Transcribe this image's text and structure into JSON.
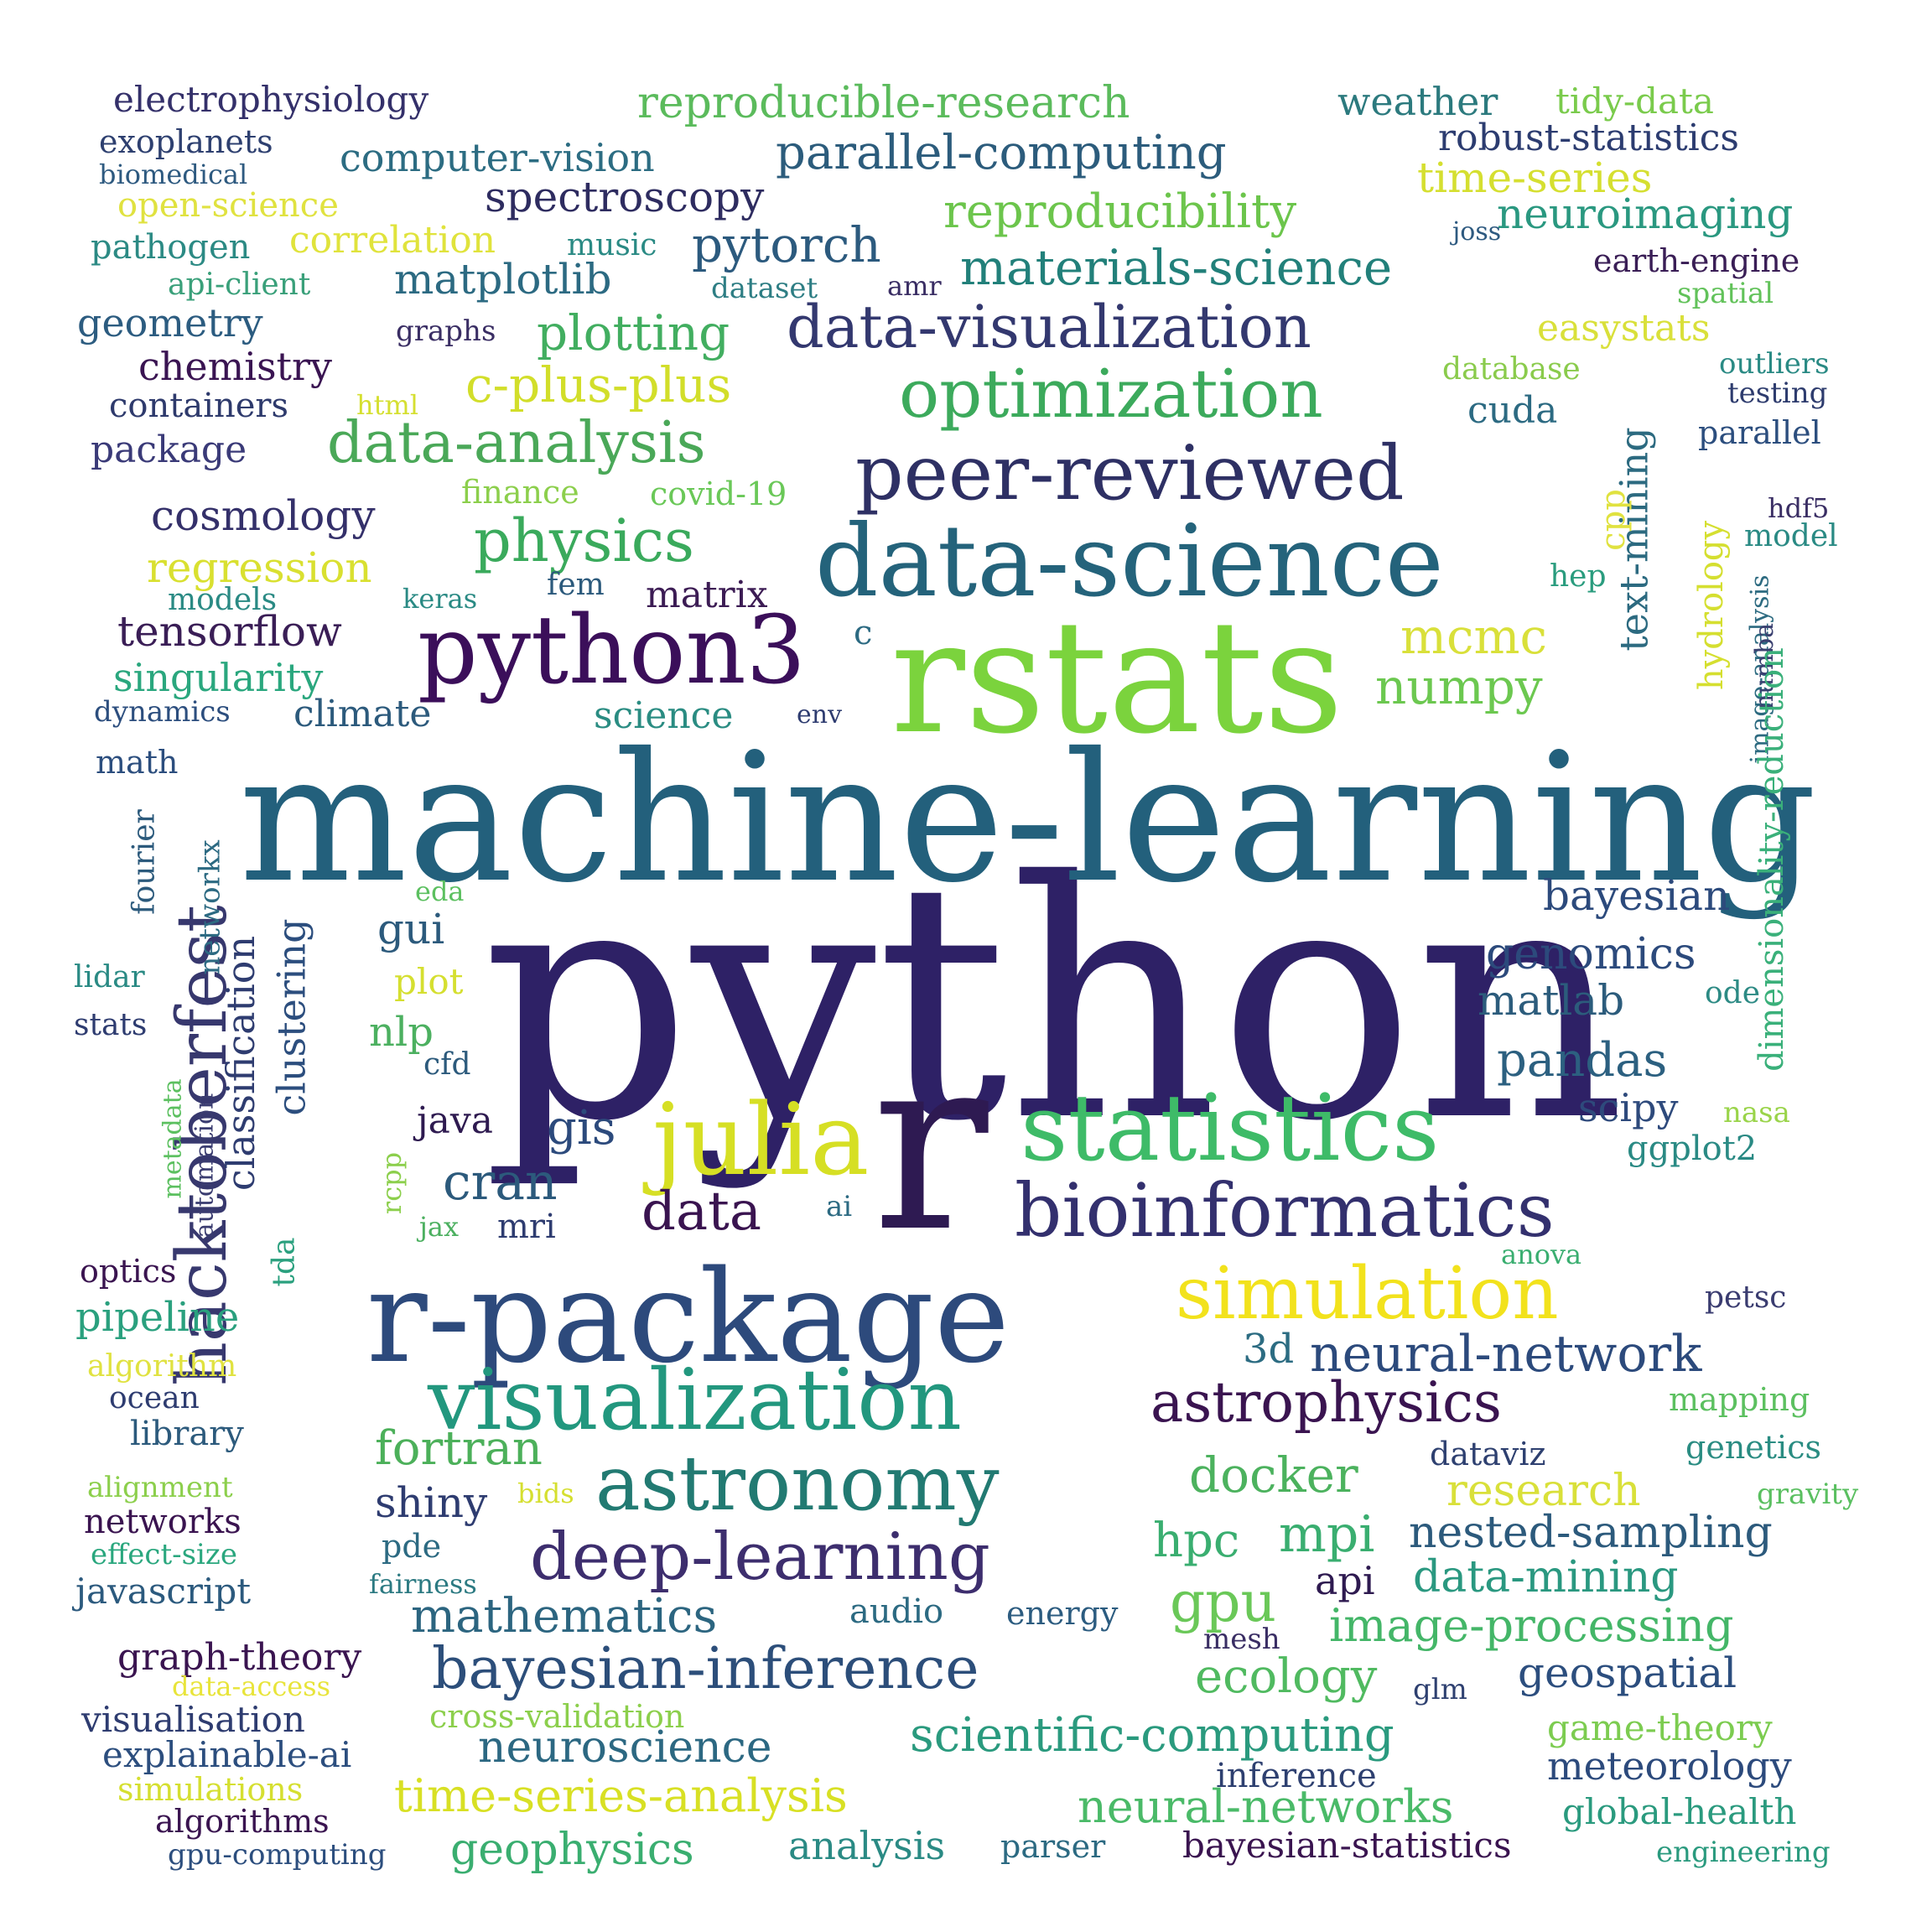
{
  "colors": {
    "background": "#ffffff",
    "palette": "viridis"
  },
  "words": [
    {
      "text": "python",
      "color": "#2e2166"
    },
    {
      "text": "machine-learning",
      "color": "#23607c"
    },
    {
      "text": "rstats",
      "color": "#7bd33d"
    },
    {
      "text": "r",
      "color": "#2e1a52"
    },
    {
      "text": "r-package",
      "color": "#2d4a7c"
    },
    {
      "text": "data-science",
      "color": "#24637b"
    },
    {
      "text": "python3",
      "color": "#3b0f5a"
    },
    {
      "text": "statistics",
      "color": "#3ebb68"
    },
    {
      "text": "hacktoberfest",
      "color": "#37386e"
    },
    {
      "text": "julia",
      "color": "#d6df24"
    },
    {
      "text": "visualization",
      "color": "#22977e"
    },
    {
      "text": "peer-reviewed",
      "color": "#2e3064"
    },
    {
      "text": "bioinformatics",
      "color": "#33306e"
    },
    {
      "text": "astronomy",
      "color": "#227a72"
    },
    {
      "text": "simulation",
      "color": "#f2e21c"
    },
    {
      "text": "optimization",
      "color": "#3caa5c"
    },
    {
      "text": "data-visualization",
      "color": "#33386f"
    },
    {
      "text": "deep-learning",
      "color": "#3d2e6e"
    },
    {
      "text": "astrophysics",
      "color": "#3a1450"
    },
    {
      "text": "data-analysis",
      "color": "#4aa858"
    },
    {
      "text": "physics",
      "color": "#3aaa5c"
    },
    {
      "text": "bayesian-inference",
      "color": "#2c4e7a"
    },
    {
      "text": "materials-science",
      "color": "#22807a"
    },
    {
      "text": "reproducible-research",
      "color": "#5bbb5c"
    },
    {
      "text": "reproducibility",
      "color": "#6cc54c"
    },
    {
      "text": "parallel-computing",
      "color": "#2c5c7c"
    },
    {
      "text": "mathematics",
      "color": "#2c6580"
    },
    {
      "text": "scientific-computing",
      "color": "#2a9a7e"
    },
    {
      "text": "neural-networks",
      "color": "#4aba68"
    },
    {
      "text": "time-series-analysis",
      "color": "#d8e024"
    },
    {
      "text": "neuroscience",
      "color": "#2c6882"
    },
    {
      "text": "pytorch",
      "color": "#2c5a7e"
    },
    {
      "text": "spectroscopy",
      "color": "#2e2c60"
    },
    {
      "text": "plotting",
      "color": "#42ae60"
    },
    {
      "text": "c-plus-plus",
      "color": "#d2de2a"
    },
    {
      "text": "matplotlib",
      "color": "#2c6a82"
    },
    {
      "text": "mcmc",
      "color": "#d9e03a"
    },
    {
      "text": "numpy",
      "color": "#6cc850"
    },
    {
      "text": "cosmology",
      "color": "#34306a"
    },
    {
      "text": "regression",
      "color": "#d9e030"
    },
    {
      "text": "tensorflow",
      "color": "#3a1e56"
    },
    {
      "text": "singularity",
      "color": "#2aa77e"
    },
    {
      "text": "climate",
      "color": "#2c5a7c"
    },
    {
      "text": "science",
      "color": "#2a8c82"
    },
    {
      "text": "matrix",
      "color": "#3c1c54"
    },
    {
      "text": "chemistry",
      "color": "#3a1452"
    },
    {
      "text": "containers",
      "color": "#2e3a6c"
    },
    {
      "text": "package",
      "color": "#3a3a78"
    },
    {
      "text": "geometry",
      "color": "#2c5c80"
    },
    {
      "text": "correlation",
      "color": "#e0e33c"
    },
    {
      "text": "open-science",
      "color": "#e0e240"
    },
    {
      "text": "pathogen",
      "color": "#2c8a84"
    },
    {
      "text": "api-client",
      "color": "#3aa07a"
    },
    {
      "text": "music",
      "color": "#2a8a84"
    },
    {
      "text": "dataset",
      "color": "#2e7e84"
    },
    {
      "text": "amr",
      "color": "#3a2e64"
    },
    {
      "text": "graphs",
      "color": "#3a2e64"
    },
    {
      "text": "electrophysiology",
      "color": "#34306a"
    },
    {
      "text": "exoplanets",
      "color": "#2e4070"
    },
    {
      "text": "biomedical",
      "color": "#2e5a80"
    },
    {
      "text": "computer-vision",
      "color": "#2c6c82"
    },
    {
      "text": "weather",
      "color": "#2c7a7e"
    },
    {
      "text": "tidy-data",
      "color": "#7acb4c"
    },
    {
      "text": "robust-statistics",
      "color": "#2c3c70"
    },
    {
      "text": "time-series",
      "color": "#d5df30"
    },
    {
      "text": "neuroimaging",
      "color": "#2a9880"
    },
    {
      "text": "joss",
      "color": "#2e5a80"
    },
    {
      "text": "earth-engine",
      "color": "#3a1e56"
    },
    {
      "text": "spatial",
      "color": "#62c25a"
    },
    {
      "text": "easystats",
      "color": "#d9e03a"
    },
    {
      "text": "database",
      "color": "#8acb4c"
    },
    {
      "text": "outliers",
      "color": "#2a8a84"
    },
    {
      "text": "testing",
      "color": "#2e3c6e"
    },
    {
      "text": "cuda",
      "color": "#2c6a82"
    },
    {
      "text": "parallel",
      "color": "#2c4e7e"
    },
    {
      "text": "text-mining",
      "color": "#2c6a80"
    },
    {
      "text": "cpp",
      "color": "#e0e240"
    },
    {
      "text": "hydrology",
      "color": "#d5df30"
    },
    {
      "text": "hdf5",
      "color": "#3a2e64"
    },
    {
      "text": "model",
      "color": "#2a8a84"
    },
    {
      "text": "hep",
      "color": "#2a9c7e"
    },
    {
      "text": "image-analysis",
      "color": "#2c6a80"
    },
    {
      "text": "numba",
      "color": "#3a4070"
    },
    {
      "text": "dimensionality-reduction",
      "color": "#3ab07a"
    },
    {
      "text": "bayesian",
      "color": "#2c4a7c"
    },
    {
      "text": "genomics",
      "color": "#2c4a7c"
    },
    {
      "text": "matlab",
      "color": "#2c5c7c"
    },
    {
      "text": "ode",
      "color": "#2c8a84"
    },
    {
      "text": "pandas",
      "color": "#2c6080"
    },
    {
      "text": "scipy",
      "color": "#2e4a7c"
    },
    {
      "text": "nasa",
      "color": "#9ad44a"
    },
    {
      "text": "ggplot2",
      "color": "#2a8a84"
    },
    {
      "text": "anova",
      "color": "#3aae70"
    },
    {
      "text": "petsc",
      "color": "#3a3c70"
    },
    {
      "text": "neural-network",
      "color": "#2c4a7c"
    },
    {
      "text": "3d",
      "color": "#2c6c82"
    },
    {
      "text": "mapping",
      "color": "#5cc060"
    },
    {
      "text": "genetics",
      "color": "#2a8c82"
    },
    {
      "text": "gravity",
      "color": "#5abf60"
    },
    {
      "text": "dataviz",
      "color": "#2e4070"
    },
    {
      "text": "research",
      "color": "#d9e03a"
    },
    {
      "text": "docker",
      "color": "#4cb25e"
    },
    {
      "text": "nested-sampling",
      "color": "#2c5a7c"
    },
    {
      "text": "hpc",
      "color": "#3aae70"
    },
    {
      "text": "mpi",
      "color": "#3aae70"
    },
    {
      "text": "api",
      "color": "#2e1a50"
    },
    {
      "text": "data-mining",
      "color": "#2a9880"
    },
    {
      "text": "gpu",
      "color": "#6ac858"
    },
    {
      "text": "image-processing",
      "color": "#44b668"
    },
    {
      "text": "ecology",
      "color": "#50ba60"
    },
    {
      "text": "glm",
      "color": "#2e4070"
    },
    {
      "text": "geospatial",
      "color": "#2c4e7e"
    },
    {
      "text": "game-theory",
      "color": "#7ccc50"
    },
    {
      "text": "meteorology",
      "color": "#2c4a7c"
    },
    {
      "text": "inference",
      "color": "#2e4070"
    },
    {
      "text": "global-health",
      "color": "#2a9a7e"
    },
    {
      "text": "bayesian-statistics",
      "color": "#3a1450"
    },
    {
      "text": "engineering",
      "color": "#2a9a7e"
    },
    {
      "text": "parser",
      "color": "#2c6a82"
    },
    {
      "text": "analysis",
      "color": "#2a8a84"
    },
    {
      "text": "geophysics",
      "color": "#3aae70"
    },
    {
      "text": "audio",
      "color": "#2c6a82"
    },
    {
      "text": "energy",
      "color": "#2c5c80"
    },
    {
      "text": "mesh",
      "color": "#3a2e64"
    },
    {
      "text": "fortran",
      "color": "#4cb05a"
    },
    {
      "text": "shiny",
      "color": "#2e3c70"
    },
    {
      "text": "bids",
      "color": "#d5df30"
    },
    {
      "text": "pde",
      "color": "#2c6a82"
    },
    {
      "text": "fairness",
      "color": "#2c7a82"
    },
    {
      "text": "javascript",
      "color": "#2c5a7e"
    },
    {
      "text": "networks",
      "color": "#3a1450"
    },
    {
      "text": "effect-size",
      "color": "#2aa77e"
    },
    {
      "text": "alignment",
      "color": "#8ccf4c"
    },
    {
      "text": "library",
      "color": "#2c5a7c"
    },
    {
      "text": "ocean",
      "color": "#2e3c70"
    },
    {
      "text": "algorithm",
      "color": "#e0e240"
    },
    {
      "text": "pipeline",
      "color": "#2aa07e"
    },
    {
      "text": "optics",
      "color": "#3a1450"
    },
    {
      "text": "graph-theory",
      "color": "#3a1450"
    },
    {
      "text": "data-access",
      "color": "#e8e43a"
    },
    {
      "text": "cross-validation",
      "color": "#8ccf4c"
    },
    {
      "text": "visualisation",
      "color": "#2e3c70"
    },
    {
      "text": "explainable-ai",
      "color": "#2c4e7e"
    },
    {
      "text": "simulations",
      "color": "#d5df30"
    },
    {
      "text": "algorithms",
      "color": "#3a1450"
    },
    {
      "text": "gpu-computing",
      "color": "#2c4e7e"
    },
    {
      "text": "cran",
      "color": "#2c5a7c"
    },
    {
      "text": "data",
      "color": "#3a1450"
    },
    {
      "text": "gis",
      "color": "#2c4a7c"
    },
    {
      "text": "mri",
      "color": "#2e3c70"
    },
    {
      "text": "java",
      "color": "#2e1a50"
    },
    {
      "text": "ai",
      "color": "#2c6a82"
    },
    {
      "text": "jax",
      "color": "#4cb060"
    },
    {
      "text": "rcpp",
      "color": "#8ccf4c"
    },
    {
      "text": "cfd",
      "color": "#2c5a7c"
    },
    {
      "text": "nlp",
      "color": "#4cb060"
    },
    {
      "text": "plot",
      "color": "#d5df30"
    },
    {
      "text": "gui",
      "color": "#2c5a7c"
    },
    {
      "text": "eda",
      "color": "#5cc060"
    },
    {
      "text": "clustering",
      "color": "#2c4e7e"
    },
    {
      "text": "classification",
      "color": "#2e3c70"
    },
    {
      "text": "tda",
      "color": "#2aa07e"
    },
    {
      "text": "metadata",
      "color": "#5cc060"
    },
    {
      "text": "automation",
      "color": "#3a3c70"
    },
    {
      "text": "networkx",
      "color": "#2c6a82"
    },
    {
      "text": "fourier",
      "color": "#2c5a7c"
    },
    {
      "text": "math",
      "color": "#2c4e7e"
    },
    {
      "text": "lidar",
      "color": "#2a8a84"
    },
    {
      "text": "stats",
      "color": "#2e3c70"
    },
    {
      "text": "dynamics",
      "color": "#2c4e7e"
    },
    {
      "text": "models",
      "color": "#2a8a84"
    },
    {
      "text": "keras",
      "color": "#2a8a84"
    },
    {
      "text": "fem",
      "color": "#2c5a7c"
    },
    {
      "text": "c",
      "color": "#2c6a82"
    },
    {
      "text": "env",
      "color": "#2e3c70"
    },
    {
      "text": "finance",
      "color": "#8ccf4c"
    },
    {
      "text": "covid-19",
      "color": "#6ac858"
    },
    {
      "text": "html",
      "color": "#d5df30"
    }
  ]
}
